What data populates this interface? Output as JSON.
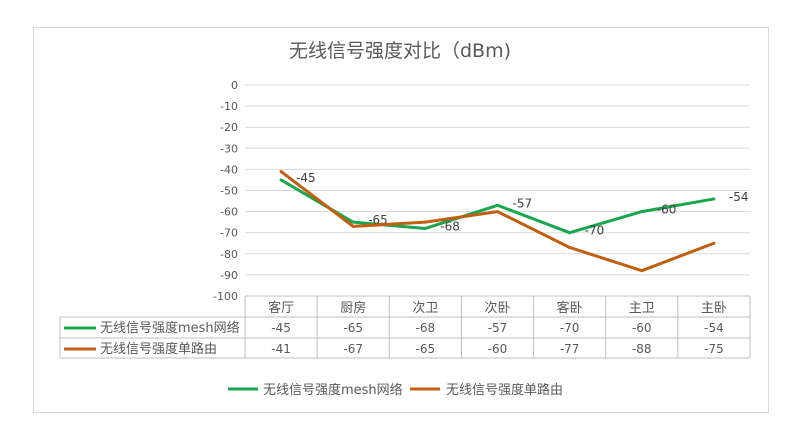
{
  "chart_data": {
    "type": "line",
    "title": "无线信号强度对比（dBm)",
    "categories": [
      "客厅",
      "厨房",
      "次卫",
      "次卧",
      "客卧",
      "主卫",
      "主卧"
    ],
    "ylim": [
      -100,
      0
    ],
    "yticks": [
      0,
      -10,
      -20,
      -30,
      -40,
      -50,
      -60,
      -70,
      -80,
      -90,
      -100
    ],
    "grid": true,
    "legend": "bottom",
    "data_table": true,
    "series": [
      {
        "name": "无线信号强度mesh网络",
        "values": [
          -45,
          -65,
          -68,
          -57,
          -70,
          -60,
          -54
        ],
        "color": "#1aa64f",
        "labels_shown": true
      },
      {
        "name": "无线信号强度单路由",
        "values": [
          -41,
          -67,
          -65,
          -60,
          -77,
          -88,
          -75
        ],
        "color": "#c05f12",
        "labels_shown": false
      }
    ]
  }
}
